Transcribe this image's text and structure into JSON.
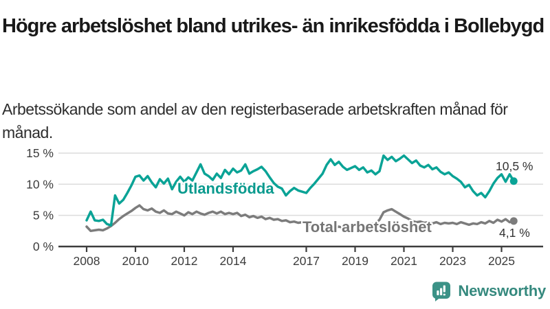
{
  "header": {
    "title": "Högre arbetslöshet bland utrikes- än inrikesfödda i Bollebygd",
    "subtitle": "Arbetssökande som andel av den registerbaserade arbetskraften månad för månad."
  },
  "footer": {
    "brand": "Newsworthy",
    "brand_icon": "bar-chart-speech-bubble",
    "icon_color": "#3b9287",
    "text_color": "#35897e"
  },
  "colors": {
    "background": "#ffffff",
    "grid": "#dcdcdc",
    "axis": "#3d3d3d",
    "tick_text": "#3c3c3c",
    "title_text": "#191919"
  },
  "chart_data": {
    "type": "line",
    "title": "Högre arbetslöshet bland utrikes- än inrikesfödda i Bollebygd",
    "subtitle": "Arbetssökande som andel av den registerbaserade arbetskraften månad för månad.",
    "unit": "%",
    "grid": true,
    "legend_position": "inline-labels",
    "ylim": [
      0,
      16
    ],
    "y_ticks": [
      {
        "value": 0,
        "label": "0 %"
      },
      {
        "value": 5,
        "label": "5 %"
      },
      {
        "value": 10,
        "label": "10 %"
      },
      {
        "value": 15,
        "label": "15 %"
      }
    ],
    "x_ticks": [
      {
        "year": 2008,
        "label": "2008"
      },
      {
        "year": 2010,
        "label": "2010"
      },
      {
        "year": 2012,
        "label": "2012"
      },
      {
        "year": 2014,
        "label": "2014"
      },
      {
        "year": 2017,
        "label": "2017"
      },
      {
        "year": 2019,
        "label": "2019"
      },
      {
        "year": 2021,
        "label": "2021"
      },
      {
        "year": 2023,
        "label": "2023"
      },
      {
        "year": 2025,
        "label": "2025"
      }
    ],
    "x_start": 2008.0,
    "x_step_years": 0.1666667,
    "series": [
      {
        "name": "Utlandsfödda",
        "color": "#0aa396",
        "label_color": "#0a9a8e",
        "end_value": 10.5,
        "end_label": "10,5 %",
        "values": [
          4.2,
          5.6,
          4.2,
          4.1,
          4.3,
          3.6,
          3.4,
          8.2,
          6.9,
          7.5,
          8.6,
          9.8,
          11.2,
          11.4,
          10.6,
          11.3,
          10.3,
          9.5,
          10.8,
          10.1,
          10.9,
          9.2,
          10.4,
          11.2,
          10.4,
          11.1,
          10.6,
          11.9,
          13.2,
          11.7,
          11.3,
          10.7,
          11.7,
          11.0,
          12.3,
          11.6,
          12.5,
          11.9,
          12.2,
          13.2,
          11.7,
          12.1,
          12.4,
          12.8,
          12.1,
          11.1,
          10.2,
          9.6,
          9.3,
          8.2,
          8.9,
          9.4,
          9.0,
          8.8,
          8.6,
          9.4,
          10.1,
          10.9,
          11.7,
          13.1,
          14.0,
          13.1,
          13.6,
          12.8,
          12.3,
          12.6,
          12.9,
          12.3,
          12.7,
          11.9,
          12.2,
          11.6,
          12.1,
          14.6,
          13.9,
          14.4,
          13.7,
          14.1,
          14.6,
          14.0,
          13.4,
          13.8,
          13.0,
          12.7,
          13.1,
          12.4,
          12.7,
          12.0,
          11.6,
          11.9,
          11.3,
          10.9,
          10.4,
          9.5,
          9.9,
          8.9,
          8.2,
          8.6,
          7.9,
          8.9,
          10.1,
          11.0,
          11.6,
          10.4,
          11.6,
          10.5
        ]
      },
      {
        "name": "Total arbetslöshet",
        "color": "#7c7c7c",
        "label_color": "#757575",
        "end_value": 4.1,
        "end_label": "4,1 %",
        "values": [
          3.2,
          2.5,
          2.6,
          2.7,
          2.6,
          2.9,
          3.3,
          3.8,
          4.4,
          4.9,
          5.3,
          5.7,
          6.2,
          6.6,
          6.0,
          5.8,
          6.1,
          5.6,
          5.4,
          5.8,
          5.3,
          5.2,
          5.6,
          5.3,
          5.0,
          5.5,
          5.2,
          5.6,
          5.3,
          5.1,
          5.4,
          5.6,
          5.3,
          5.6,
          5.2,
          5.4,
          5.2,
          5.4,
          4.9,
          5.1,
          4.7,
          4.9,
          4.6,
          4.8,
          4.4,
          4.6,
          4.3,
          4.4,
          4.1,
          4.2,
          3.9,
          4.0,
          3.8,
          3.9,
          3.6,
          3.5,
          3.6,
          3.3,
          3.2,
          3.4,
          3.1,
          2.9,
          3.2,
          3.0,
          3.3,
          3.2,
          3.4,
          3.2,
          3.5,
          3.3,
          3.6,
          3.7,
          4.3,
          5.5,
          5.8,
          6.0,
          5.6,
          5.2,
          4.8,
          4.5,
          4.1,
          3.9,
          4.0,
          3.8,
          3.9,
          3.7,
          3.9,
          3.6,
          3.8,
          3.7,
          3.8,
          3.6,
          3.9,
          3.7,
          3.5,
          3.7,
          3.6,
          3.9,
          3.7,
          4.1,
          3.8,
          4.3,
          4.0,
          4.4,
          3.9,
          4.1
        ]
      }
    ]
  }
}
